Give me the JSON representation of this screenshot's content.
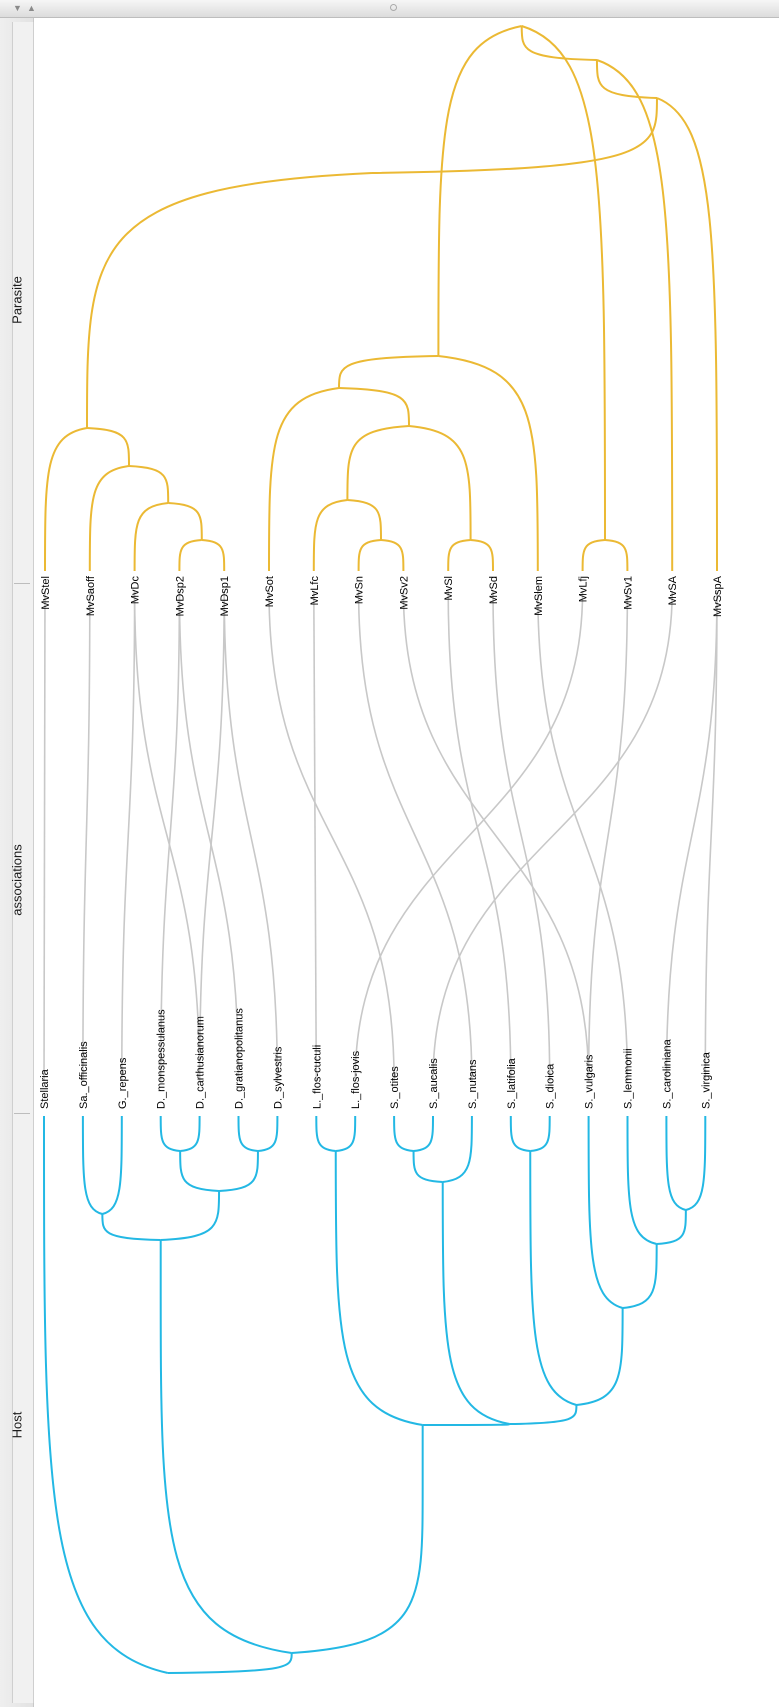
{
  "window": {
    "scroll_up_icon": "triangle-down",
    "scroll_down_icon": "triangle-up",
    "colors": {
      "parasite": "#ebb934",
      "host": "#23b8e4",
      "association": "#c8c8c8",
      "panel": "#f1f1f1"
    }
  },
  "sections": {
    "parasite": "Parasite",
    "associations": "associations",
    "host": "Host"
  },
  "parasites": [
    "MvStel",
    "MvSaoff",
    "MvDc",
    "MvDsp2",
    "MvDsp1",
    "MvSot",
    "MvLfc",
    "MvSn",
    "MvSv2",
    "MvSl",
    "MvSd",
    "MvSlem",
    "MvLfj",
    "MvSv1",
    "MvSA",
    "MvSspA"
  ],
  "hosts": [
    "Stellaria",
    "Sa._officinalis",
    "G._repens",
    "D._monspessulanus",
    "D._carthusianorum",
    "D._gratianopolitanus",
    "D._sylvestris",
    "L._flos-cuculi",
    "L._flos-jovis",
    "S._otites",
    "S._aucalis",
    "S._nutans",
    "S._latifolia",
    "S._dioica",
    "S._vulgaris",
    "S._lemmonii",
    "S._caroliniana",
    "S._virginica"
  ],
  "associations": [
    [
      "MvStel",
      "Stellaria"
    ],
    [
      "MvSaoff",
      "Sa._officinalis"
    ],
    [
      "MvDc",
      "G._repens"
    ],
    [
      "MvDc",
      "D._carthusianorum"
    ],
    [
      "MvDsp2",
      "D._monspessulanus"
    ],
    [
      "MvDsp2",
      "D._gratianopolitanus"
    ],
    [
      "MvDsp1",
      "D._carthusianorum"
    ],
    [
      "MvDsp1",
      "D._sylvestris"
    ],
    [
      "MvSot",
      "S._otites"
    ],
    [
      "MvLfc",
      "L._flos-cuculi"
    ],
    [
      "MvSn",
      "S._nutans"
    ],
    [
      "MvSv2",
      "S._vulgaris"
    ],
    [
      "MvSl",
      "S._latifolia"
    ],
    [
      "MvSd",
      "S._dioica"
    ],
    [
      "MvSlem",
      "S._lemmonii"
    ],
    [
      "MvLfj",
      "L._flos-jovis"
    ],
    [
      "MvSv1",
      "S._vulgaris"
    ],
    [
      "MvSA",
      "S._aucalis"
    ],
    [
      "MvSspA",
      "S._caroliniana"
    ],
    [
      "MvSspA",
      "S._virginica"
    ]
  ]
}
